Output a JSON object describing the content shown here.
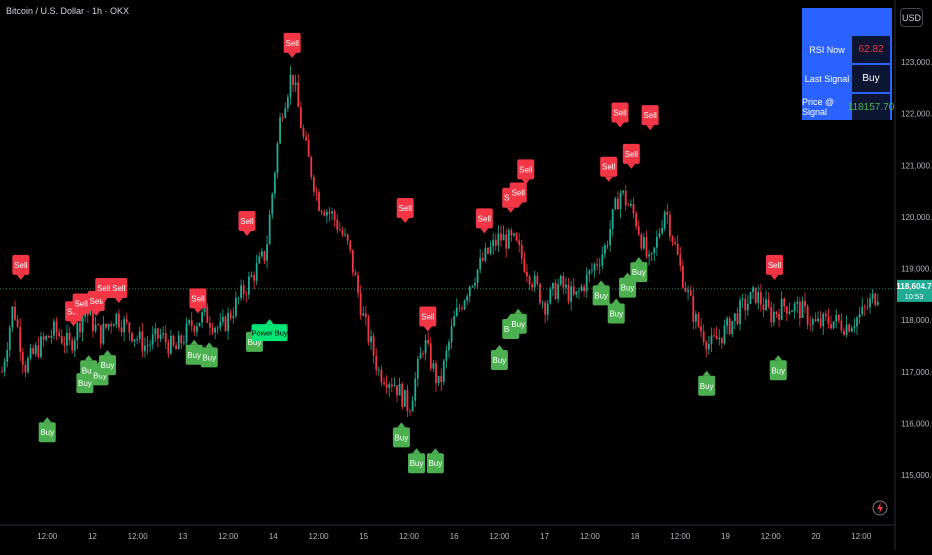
{
  "header": {
    "title": "Bitcoin / U.S. Dollar · 1h · OKX",
    "currency": "USD"
  },
  "panel": {
    "rows": [
      {
        "label": "RSI Now",
        "value": "62.82",
        "color": "#f23645"
      },
      {
        "label": "Last Signal",
        "value": "Buy",
        "color": "#ffffff"
      },
      {
        "label": "Price @ Signal",
        "value": "118157.70",
        "color": "#4caf50"
      }
    ]
  },
  "price_tag": {
    "price": "118,604.7",
    "countdown": "10:53",
    "color": "#22ab94"
  },
  "colors": {
    "up": "#22ab94",
    "down": "#f23645",
    "buy": "#4caf50",
    "sell": "#f23645",
    "power_buy": "#00e676",
    "panel": "#2962ff"
  },
  "chart_data": {
    "type": "candlestick",
    "title": "Bitcoin / U.S. Dollar · 1h · OKX",
    "y_axis": {
      "ticks": [
        115000,
        116000,
        117000,
        118000,
        119000,
        120000,
        121000,
        122000,
        123000
      ],
      "tick_labels": [
        "115,000.0",
        "116,000.0",
        "117,000.0",
        "118,000.0",
        "119,000.0",
        "120,000.0",
        "121,000.0",
        "122,000.0",
        "123,000.0"
      ],
      "ylim": [
        114300,
        123800
      ]
    },
    "x_axis": {
      "tick_labels": [
        "12:00",
        "12",
        "12:00",
        "13",
        "12:00",
        "14",
        "12:00",
        "15",
        "12:00",
        "16",
        "12:00",
        "17",
        "12:00",
        "18",
        "12:00",
        "19",
        "12:00",
        "20",
        "12:00"
      ],
      "tick_times": [
        12,
        24,
        36,
        48,
        60,
        72,
        84,
        96,
        108,
        120,
        132,
        144,
        156,
        168,
        180,
        192,
        204,
        216,
        228
      ],
      "xlim": [
        0,
        233
      ]
    },
    "current_price": 118604.7,
    "price_path": [
      [
        0,
        117000
      ],
      [
        3,
        118300
      ],
      [
        6,
        117100
      ],
      [
        10,
        117500
      ],
      [
        14,
        117800
      ],
      [
        18,
        117500
      ],
      [
        22,
        118200
      ],
      [
        26,
        117700
      ],
      [
        30,
        118100
      ],
      [
        34,
        117800
      ],
      [
        38,
        117500
      ],
      [
        42,
        117700
      ],
      [
        46,
        117400
      ],
      [
        50,
        117900
      ],
      [
        54,
        118100
      ],
      [
        58,
        117800
      ],
      [
        62,
        118300
      ],
      [
        66,
        118800
      ],
      [
        70,
        119300
      ],
      [
        74,
        122000
      ],
      [
        77,
        122800
      ],
      [
        80,
        121500
      ],
      [
        84,
        120300
      ],
      [
        88,
        120000
      ],
      [
        92,
        119400
      ],
      [
        96,
        118000
      ],
      [
        100,
        117000
      ],
      [
        104,
        116800
      ],
      [
        108,
        116300
      ],
      [
        112,
        117600
      ],
      [
        116,
        116700
      ],
      [
        120,
        118000
      ],
      [
        124,
        118700
      ],
      [
        128,
        119200
      ],
      [
        132,
        119600
      ],
      [
        136,
        119500
      ],
      [
        140,
        118900
      ],
      [
        144,
        118300
      ],
      [
        148,
        118700
      ],
      [
        152,
        118400
      ],
      [
        156,
        118900
      ],
      [
        160,
        119400
      ],
      [
        164,
        120500
      ],
      [
        168,
        120000
      ],
      [
        172,
        119000
      ],
      [
        176,
        120200
      ],
      [
        180,
        119000
      ],
      [
        184,
        118000
      ],
      [
        188,
        117500
      ],
      [
        192,
        117800
      ],
      [
        196,
        118200
      ],
      [
        200,
        118500
      ],
      [
        204,
        118100
      ],
      [
        208,
        118300
      ],
      [
        212,
        118200
      ],
      [
        216,
        117900
      ],
      [
        220,
        118000
      ],
      [
        224,
        117900
      ],
      [
        228,
        118100
      ],
      [
        233,
        118600
      ]
    ],
    "signals": [
      {
        "t": 5,
        "price": 118800,
        "label": "Sell",
        "type": "sell"
      },
      {
        "t": 12,
        "price": 116100,
        "label": "Buy",
        "type": "buy"
      },
      {
        "t": 19,
        "price": 117900,
        "label": "Sell",
        "type": "sell"
      },
      {
        "t": 21,
        "price": 118050,
        "label": "Sell",
        "type": "sell"
      },
      {
        "t": 22,
        "price": 117050,
        "label": "Buy",
        "type": "buy"
      },
      {
        "t": 23,
        "price": 117300,
        "label": "Buy",
        "type": "buy"
      },
      {
        "t": 25,
        "price": 118100,
        "label": "Sell",
        "type": "sell"
      },
      {
        "t": 26,
        "price": 117200,
        "label": "Buy",
        "type": "buy"
      },
      {
        "t": 27,
        "price": 118350,
        "label": "Sell",
        "type": "sell"
      },
      {
        "t": 28,
        "price": 117400,
        "label": "Buy",
        "type": "buy"
      },
      {
        "t": 31,
        "price": 118350,
        "label": "Sell",
        "type": "sell"
      },
      {
        "t": 51,
        "price": 117600,
        "label": "Buy",
        "type": "buy"
      },
      {
        "t": 52,
        "price": 118150,
        "label": "Sell",
        "type": "sell"
      },
      {
        "t": 55,
        "price": 117550,
        "label": "Buy",
        "type": "buy"
      },
      {
        "t": 65,
        "price": 119650,
        "label": "Sell",
        "type": "sell"
      },
      {
        "t": 67,
        "price": 117850,
        "label": "Buy",
        "type": "buy"
      },
      {
        "t": 71,
        "price": 118000,
        "label": "Power Buy",
        "type": "power_buy"
      },
      {
        "t": 77,
        "price": 123100,
        "label": "Sell",
        "type": "sell"
      },
      {
        "t": 106,
        "price": 116000,
        "label": "Buy",
        "type": "buy"
      },
      {
        "t": 107,
        "price": 119900,
        "label": "Sell",
        "type": "sell"
      },
      {
        "t": 110,
        "price": 115500,
        "label": "Buy",
        "type": "buy"
      },
      {
        "t": 113,
        "price": 117800,
        "label": "Sell",
        "type": "sell"
      },
      {
        "t": 115,
        "price": 115500,
        "label": "Buy",
        "type": "buy"
      },
      {
        "t": 128,
        "price": 119700,
        "label": "Sell",
        "type": "sell"
      },
      {
        "t": 132,
        "price": 117500,
        "label": "Buy",
        "type": "buy"
      },
      {
        "t": 135,
        "price": 118100,
        "label": "Buy",
        "type": "buy"
      },
      {
        "t": 135,
        "price": 120100,
        "label": "Sell",
        "type": "sell"
      },
      {
        "t": 137,
        "price": 118200,
        "label": "Buy",
        "type": "buy"
      },
      {
        "t": 137,
        "price": 120200,
        "label": "Sell",
        "type": "sell"
      },
      {
        "t": 139,
        "price": 120650,
        "label": "Sell",
        "type": "sell"
      },
      {
        "t": 159,
        "price": 118750,
        "label": "Buy",
        "type": "buy"
      },
      {
        "t": 161,
        "price": 120700,
        "label": "Sell",
        "type": "sell"
      },
      {
        "t": 163,
        "price": 118400,
        "label": "Buy",
        "type": "buy"
      },
      {
        "t": 164,
        "price": 121750,
        "label": "Sell",
        "type": "sell"
      },
      {
        "t": 166,
        "price": 118900,
        "label": "Buy",
        "type": "buy"
      },
      {
        "t": 167,
        "price": 120950,
        "label": "Sell",
        "type": "sell"
      },
      {
        "t": 169,
        "price": 119200,
        "label": "Buy",
        "type": "buy"
      },
      {
        "t": 172,
        "price": 121700,
        "label": "Sell",
        "type": "sell"
      },
      {
        "t": 187,
        "price": 117000,
        "label": "Buy",
        "type": "buy"
      },
      {
        "t": 205,
        "price": 118800,
        "label": "Sell",
        "type": "sell"
      },
      {
        "t": 206,
        "price": 117300,
        "label": "Buy",
        "type": "buy"
      }
    ]
  }
}
